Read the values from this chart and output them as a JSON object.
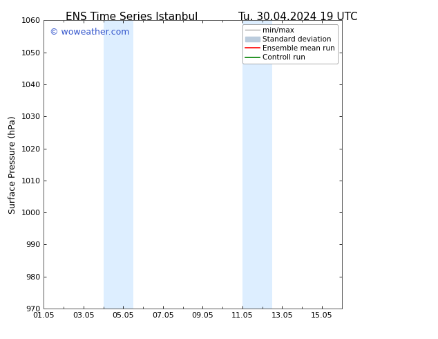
{
  "title": "ENS Time Series Istanbul",
  "subtitle": "Tu. 30.04.2024 19 UTC",
  "ylabel": "Surface Pressure (hPa)",
  "ylim": [
    970,
    1060
  ],
  "yticks": [
    970,
    980,
    990,
    1000,
    1010,
    1020,
    1030,
    1040,
    1050,
    1060
  ],
  "xlim": [
    0,
    15
  ],
  "xtick_labels": [
    "01.05",
    "03.05",
    "05.05",
    "07.05",
    "09.05",
    "11.05",
    "13.05",
    "15.05"
  ],
  "xtick_positions": [
    0,
    2,
    4,
    6,
    8,
    10,
    12,
    14
  ],
  "shaded_regions": [
    {
      "start": 3.0,
      "end": 4.5,
      "color": "#ddeeff"
    },
    {
      "start": 10.0,
      "end": 11.5,
      "color": "#ddeeff"
    }
  ],
  "watermark_text": "© woweather.com",
  "watermark_color": "#3355cc",
  "legend_entries": [
    {
      "label": "min/max",
      "color": "#aaaaaa",
      "type": "line",
      "linewidth": 1.0
    },
    {
      "label": "Standard deviation",
      "color": "#bbccdd",
      "type": "patch"
    },
    {
      "label": "Ensemble mean run",
      "color": "red",
      "type": "line",
      "linewidth": 1.2
    },
    {
      "label": "Controll run",
      "color": "green",
      "type": "line",
      "linewidth": 1.2
    }
  ],
  "background_color": "#ffffff",
  "plot_bg_color": "#ffffff",
  "border_color": "#555555",
  "title_fontsize": 11,
  "ylabel_fontsize": 9,
  "tick_fontsize": 8,
  "legend_fontsize": 7.5
}
